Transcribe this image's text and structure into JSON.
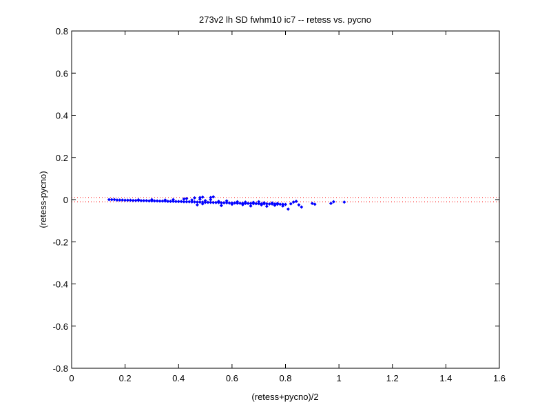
{
  "chart_data": {
    "type": "scatter",
    "title": "273v2 lh SD fwhm10 ic7 -- retess vs. pycno",
    "xlabel": "(retess+pycno)/2",
    "ylabel": "(retess-pycno)",
    "xlim": [
      0,
      1.6
    ],
    "ylim": [
      -0.8,
      0.8
    ],
    "xticks": [
      0,
      0.2,
      0.4,
      0.6,
      0.8,
      1,
      1.2,
      1.4,
      1.6
    ],
    "xtick_labels": [
      "0",
      "0.2",
      "0.4",
      "0.6",
      "0.8",
      "1",
      "1.2",
      "1.4",
      "1.6"
    ],
    "yticks": [
      -0.8,
      -0.6,
      -0.4,
      -0.2,
      0,
      0.2,
      0.4,
      0.6,
      0.8
    ],
    "ytick_labels": [
      "-0.8",
      "-0.6",
      "-0.4",
      "-0.2",
      "0",
      "0.2",
      "0.4",
      "0.6",
      "0.8"
    ],
    "grid": false,
    "marker_color": "#0000ff",
    "reference_line_color": "#ff0000",
    "reference_lines_y": [
      0.01,
      -0.01
    ],
    "series": [
      {
        "x": [
          0.14,
          0.15,
          0.16,
          0.17,
          0.18,
          0.19,
          0.2,
          0.21,
          0.22,
          0.23,
          0.24,
          0.25,
          0.26,
          0.27,
          0.28,
          0.29,
          0.3,
          0.31,
          0.32,
          0.33,
          0.34,
          0.35,
          0.36,
          0.37,
          0.38,
          0.39,
          0.4,
          0.41,
          0.42,
          0.43,
          0.44,
          0.45,
          0.46,
          0.47,
          0.48,
          0.49,
          0.5,
          0.51,
          0.52,
          0.53,
          0.54,
          0.55,
          0.56,
          0.57,
          0.58,
          0.59,
          0.6,
          0.61,
          0.62,
          0.63,
          0.64,
          0.65,
          0.66,
          0.67,
          0.68,
          0.69,
          0.7,
          0.71,
          0.72,
          0.73,
          0.74,
          0.75,
          0.76,
          0.77,
          0.78,
          0.79,
          0.8,
          0.25,
          0.3,
          0.35,
          0.38,
          0.42,
          0.45,
          0.48,
          0.5,
          0.52,
          0.55,
          0.58,
          0.62,
          0.65,
          0.68,
          0.7,
          0.72,
          0.75,
          0.77,
          0.43,
          0.46,
          0.48,
          0.49,
          0.52,
          0.53,
          0.47,
          0.49,
          0.56,
          0.6,
          0.64,
          0.67,
          0.71,
          0.73,
          0.76,
          0.79,
          0.81,
          0.82,
          0.83,
          0.84,
          0.85,
          0.86,
          0.9,
          0.91,
          0.97,
          0.98,
          1.02
        ],
        "y": [
          0.0,
          0.0,
          0.0,
          -0.002,
          -0.002,
          -0.002,
          -0.003,
          -0.003,
          -0.003,
          -0.004,
          -0.004,
          -0.004,
          -0.005,
          -0.005,
          -0.005,
          -0.006,
          -0.006,
          -0.006,
          -0.006,
          -0.007,
          -0.007,
          -0.007,
          -0.008,
          -0.008,
          -0.008,
          -0.009,
          -0.009,
          -0.009,
          -0.01,
          -0.01,
          -0.01,
          -0.011,
          -0.011,
          -0.012,
          -0.012,
          -0.012,
          -0.013,
          -0.013,
          -0.013,
          -0.014,
          -0.014,
          -0.014,
          -0.015,
          -0.015,
          -0.015,
          -0.016,
          -0.016,
          -0.016,
          -0.017,
          -0.017,
          -0.017,
          -0.018,
          -0.018,
          -0.018,
          -0.019,
          -0.019,
          -0.019,
          -0.02,
          -0.02,
          -0.02,
          -0.021,
          -0.021,
          -0.021,
          -0.022,
          -0.022,
          -0.022,
          -0.023,
          -0.001,
          0.0,
          -0.002,
          0.0,
          0.003,
          -0.002,
          0.002,
          -0.005,
          0.0,
          -0.008,
          -0.006,
          -0.01,
          -0.012,
          -0.013,
          -0.01,
          -0.015,
          -0.016,
          -0.018,
          0.005,
          0.008,
          0.01,
          0.012,
          0.01,
          0.013,
          -0.025,
          -0.02,
          -0.028,
          -0.022,
          -0.024,
          -0.03,
          -0.025,
          -0.032,
          -0.027,
          -0.03,
          -0.045,
          -0.02,
          -0.012,
          -0.008,
          -0.025,
          -0.035,
          -0.018,
          -0.022,
          -0.018,
          -0.01,
          -0.012
        ]
      }
    ]
  }
}
